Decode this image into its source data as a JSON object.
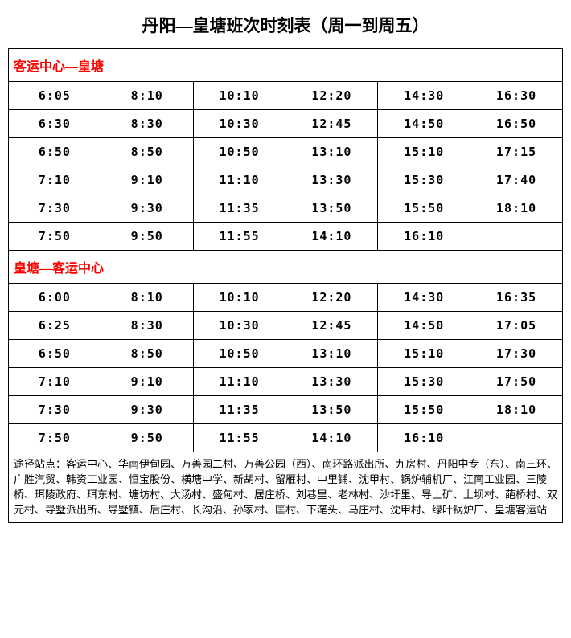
{
  "title": "丹阳—皇塘班次时刻表（周一到周五）",
  "colors": {
    "header_text": "#ff0000",
    "body_text": "#000000",
    "border": "#000000",
    "background": "#ffffff"
  },
  "sections": [
    {
      "name": "客运中心—皇塘",
      "rows": [
        [
          "6:05",
          "8:10",
          "10:10",
          "12:20",
          "14:30",
          "16:30"
        ],
        [
          "6:30",
          "8:30",
          "10:30",
          "12:45",
          "14:50",
          "16:50"
        ],
        [
          "6:50",
          "8:50",
          "10:50",
          "13:10",
          "15:10",
          "17:15"
        ],
        [
          "7:10",
          "9:10",
          "11:10",
          "13:30",
          "15:30",
          "17:40"
        ],
        [
          "7:30",
          "9:30",
          "11:35",
          "13:50",
          "15:50",
          "18:10"
        ],
        [
          "7:50",
          "9:50",
          "11:55",
          "14:10",
          "16:10",
          ""
        ]
      ]
    },
    {
      "name": "皇塘—客运中心",
      "rows": [
        [
          "6:00",
          "8:10",
          "10:10",
          "12:20",
          "14:30",
          "16:35"
        ],
        [
          "6:25",
          "8:30",
          "10:30",
          "12:45",
          "14:50",
          "17:05"
        ],
        [
          "6:50",
          "8:50",
          "10:50",
          "13:10",
          "15:10",
          "17:30"
        ],
        [
          "7:10",
          "9:10",
          "11:10",
          "13:30",
          "15:30",
          "17:50"
        ],
        [
          "7:30",
          "9:30",
          "11:35",
          "13:50",
          "15:50",
          "18:10"
        ],
        [
          "7:50",
          "9:50",
          "11:55",
          "14:10",
          "16:10",
          ""
        ]
      ]
    }
  ],
  "footer_text": "途径站点：客运中心、华南伊甸园、万善园二村、万善公园（西）、南环路派出所、九房村、丹阳中专（东）、南三环、广胜汽贸、韩资工业园、恒宝股份、横塘中学、新胡村、留雁村、中里铺、沈甲村、锅炉辅机厂、江南工业园、三陵桥、珥陵政府、珥东村、塘坊村、大汤村、盛甸村、居庄桥、刘巷里、老林村、沙圩里、导士矿、上坝村、葩桥村、双元村、导墅派出所、导墅镇、后庄村、长沟沿、孙家村、匡村、下滗头、马庄村、沈甲村、绿叶锅炉厂、皇塘客运站",
  "table": {
    "columns": 6,
    "font_size_title": 21,
    "font_size_header": 16,
    "font_size_cell": 15,
    "font_size_footer": 13
  }
}
